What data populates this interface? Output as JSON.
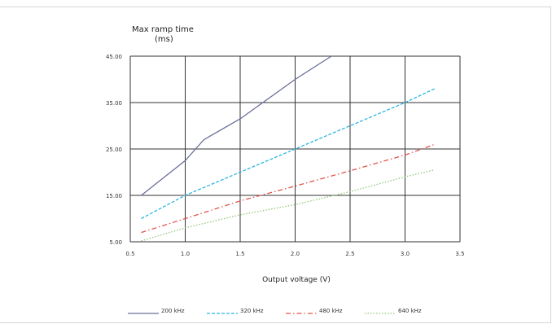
{
  "chart_data": {
    "type": "line",
    "title": "Max ramp time",
    "ylabel_unit": "(ms)",
    "xlabel": "Output voltage (V)",
    "xlim": [
      0.5,
      3.5
    ],
    "ylim": [
      5,
      45
    ],
    "x_ticks": [
      "0.5",
      "1.0",
      "1.5",
      "2.0",
      "2.5",
      "3.0",
      "3.5"
    ],
    "y_ticks": [
      "5.00",
      "15.00",
      "25.00",
      "35.00",
      "45.00"
    ],
    "grid": true,
    "legend_position": "bottom",
    "series": [
      {
        "name": "200 kHz",
        "color": "#6b6f9a",
        "style": "solid",
        "points": [
          [
            0.6,
            15
          ],
          [
            1.0,
            22.5
          ],
          [
            1.17,
            27
          ],
          [
            1.5,
            31.5
          ],
          [
            2.0,
            40
          ],
          [
            2.33,
            45
          ]
        ]
      },
      {
        "name": "320 kHz",
        "color": "#2bb6e0",
        "style": "dashed",
        "points": [
          [
            0.6,
            10
          ],
          [
            1.0,
            15
          ],
          [
            1.5,
            20
          ],
          [
            2.0,
            25
          ],
          [
            2.5,
            30
          ],
          [
            3.0,
            35
          ],
          [
            3.27,
            38
          ]
        ]
      },
      {
        "name": "480 kHz",
        "color": "#e0554d",
        "style": "dashdot",
        "points": [
          [
            0.6,
            7
          ],
          [
            1.0,
            10
          ],
          [
            1.5,
            13.8
          ],
          [
            2.0,
            17
          ],
          [
            2.5,
            20.3
          ],
          [
            3.0,
            23.7
          ],
          [
            3.27,
            26
          ]
        ]
      },
      {
        "name": "640 kHz",
        "color": "#92c87a",
        "style": "dotted",
        "points": [
          [
            0.6,
            5.2
          ],
          [
            1.0,
            8
          ],
          [
            1.5,
            10.8
          ],
          [
            2.0,
            13
          ],
          [
            2.5,
            15.8
          ],
          [
            3.0,
            19
          ],
          [
            3.27,
            20.5
          ]
        ]
      }
    ]
  }
}
